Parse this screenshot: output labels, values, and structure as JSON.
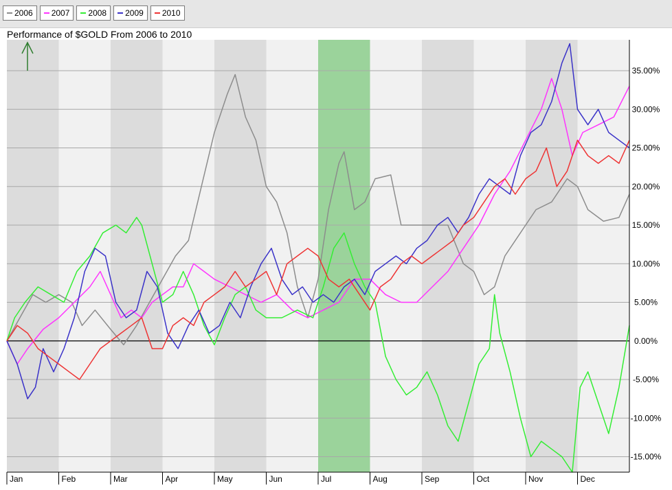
{
  "title": "Performance of $GOLD From 2006 to 2010",
  "legend": [
    {
      "label": "2006",
      "color": "#8c8c8c"
    },
    {
      "label": "2007",
      "color": "#ff33ff"
    },
    {
      "label": "2008",
      "color": "#33ee33"
    },
    {
      "label": "2009",
      "color": "#3a32c8"
    },
    {
      "label": "2010",
      "color": "#ee3333"
    }
  ],
  "chart_data": {
    "type": "line",
    "title": "Performance of $GOLD From 2006 to 2010",
    "x_unit": "month (0 = Jan 1, 12 = Dec 31)",
    "x_labels": [
      "Jan",
      "Feb",
      "Mar",
      "Apr",
      "May",
      "Jun",
      "Jul",
      "Aug",
      "Sep",
      "Oct",
      "Nov",
      "Dec"
    ],
    "ylim": [
      -17,
      39
    ],
    "y_ticks": [
      -15,
      -10,
      -5,
      0,
      5,
      10,
      15,
      20,
      25,
      30,
      35
    ],
    "y_tick_labels": [
      "-15.00%",
      "-10.00%",
      "-5.00%",
      "0.00%",
      "5.00%",
      "10.00%",
      "15.00%",
      "20.00%",
      "25.00%",
      "30.00%",
      "35.00%"
    ],
    "highlight_band": {
      "from": 6,
      "to": 7,
      "color": "#8fd18f"
    },
    "grid": true,
    "series": [
      {
        "name": "2006",
        "color": "#8c8c8c",
        "points": [
          [
            0,
            0
          ],
          [
            0.25,
            3
          ],
          [
            0.5,
            6
          ],
          [
            0.75,
            5
          ],
          [
            1,
            6
          ],
          [
            1.25,
            5
          ],
          [
            1.45,
            2
          ],
          [
            1.7,
            4
          ],
          [
            2,
            1.5
          ],
          [
            2.25,
            -0.5
          ],
          [
            2.5,
            2
          ],
          [
            2.75,
            5
          ],
          [
            3,
            8
          ],
          [
            3.25,
            11
          ],
          [
            3.5,
            13
          ],
          [
            3.75,
            20
          ],
          [
            4,
            27
          ],
          [
            4.25,
            32
          ],
          [
            4.4,
            34.5
          ],
          [
            4.6,
            29
          ],
          [
            4.8,
            26
          ],
          [
            5,
            20
          ],
          [
            5.2,
            18
          ],
          [
            5.4,
            14
          ],
          [
            5.6,
            7
          ],
          [
            5.8,
            3
          ],
          [
            6,
            8
          ],
          [
            6.2,
            17
          ],
          [
            6.4,
            23
          ],
          [
            6.5,
            24.5
          ],
          [
            6.7,
            17
          ],
          [
            6.9,
            18
          ],
          [
            7.1,
            21
          ],
          [
            7.4,
            21.5
          ],
          [
            7.6,
            15
          ],
          [
            7.9,
            15
          ],
          [
            8.2,
            15
          ],
          [
            8.5,
            15
          ],
          [
            8.8,
            10
          ],
          [
            9,
            9
          ],
          [
            9.2,
            6
          ],
          [
            9.4,
            7
          ],
          [
            9.6,
            11
          ],
          [
            9.9,
            14
          ],
          [
            10.2,
            17
          ],
          [
            10.5,
            18
          ],
          [
            10.8,
            21
          ],
          [
            11,
            20
          ],
          [
            11.2,
            17
          ],
          [
            11.5,
            15.5
          ],
          [
            11.8,
            16
          ],
          [
            12,
            19
          ]
        ]
      },
      {
        "name": "2007",
        "color": "#ff33ff",
        "points": [
          [
            0,
            0
          ],
          [
            0.2,
            -3
          ],
          [
            0.4,
            -1
          ],
          [
            0.7,
            1.5
          ],
          [
            1,
            3
          ],
          [
            1.3,
            5
          ],
          [
            1.6,
            7
          ],
          [
            1.8,
            9
          ],
          [
            2,
            6
          ],
          [
            2.2,
            3
          ],
          [
            2.4,
            4
          ],
          [
            2.6,
            3
          ],
          [
            2.8,
            5
          ],
          [
            3,
            6
          ],
          [
            3.2,
            7
          ],
          [
            3.4,
            7
          ],
          [
            3.6,
            10
          ],
          [
            3.8,
            9
          ],
          [
            4,
            8
          ],
          [
            4.3,
            7
          ],
          [
            4.6,
            6
          ],
          [
            4.9,
            5
          ],
          [
            5.2,
            6
          ],
          [
            5.5,
            4
          ],
          [
            5.8,
            3
          ],
          [
            6.1,
            4
          ],
          [
            6.4,
            5
          ],
          [
            6.7,
            8
          ],
          [
            7,
            8
          ],
          [
            7.3,
            6
          ],
          [
            7.6,
            5
          ],
          [
            7.9,
            5
          ],
          [
            8.2,
            7
          ],
          [
            8.5,
            9
          ],
          [
            8.8,
            12
          ],
          [
            9.1,
            15
          ],
          [
            9.4,
            19
          ],
          [
            9.7,
            22
          ],
          [
            10,
            26
          ],
          [
            10.3,
            30
          ],
          [
            10.5,
            34
          ],
          [
            10.7,
            30
          ],
          [
            10.9,
            24
          ],
          [
            11.1,
            27
          ],
          [
            11.4,
            28
          ],
          [
            11.7,
            29
          ],
          [
            12,
            33
          ]
        ]
      },
      {
        "name": "2008",
        "color": "#33ee33",
        "points": [
          [
            0,
            0
          ],
          [
            0.15,
            3
          ],
          [
            0.35,
            5
          ],
          [
            0.6,
            7
          ],
          [
            0.85,
            6
          ],
          [
            1.1,
            5
          ],
          [
            1.35,
            9
          ],
          [
            1.6,
            11
          ],
          [
            1.85,
            14
          ],
          [
            2.1,
            15
          ],
          [
            2.3,
            14
          ],
          [
            2.5,
            16
          ],
          [
            2.6,
            15
          ],
          [
            2.8,
            10
          ],
          [
            3,
            5
          ],
          [
            3.2,
            6
          ],
          [
            3.4,
            9
          ],
          [
            3.6,
            6
          ],
          [
            3.8,
            2
          ],
          [
            4,
            -0.5
          ],
          [
            4.2,
            3
          ],
          [
            4.4,
            6
          ],
          [
            4.6,
            7
          ],
          [
            4.8,
            4
          ],
          [
            5,
            3
          ],
          [
            5.3,
            3
          ],
          [
            5.6,
            4
          ],
          [
            5.9,
            3
          ],
          [
            6.1,
            7
          ],
          [
            6.3,
            12
          ],
          [
            6.5,
            14
          ],
          [
            6.7,
            10
          ],
          [
            6.9,
            7
          ],
          [
            7.1,
            5
          ],
          [
            7.3,
            -2
          ],
          [
            7.5,
            -5
          ],
          [
            7.7,
            -7
          ],
          [
            7.9,
            -6
          ],
          [
            8.1,
            -4
          ],
          [
            8.3,
            -7
          ],
          [
            8.5,
            -11
          ],
          [
            8.7,
            -13
          ],
          [
            8.9,
            -8
          ],
          [
            9.1,
            -3
          ],
          [
            9.3,
            -1
          ],
          [
            9.4,
            6
          ],
          [
            9.5,
            1
          ],
          [
            9.7,
            -4
          ],
          [
            9.9,
            -10
          ],
          [
            10.1,
            -15
          ],
          [
            10.3,
            -13
          ],
          [
            10.5,
            -14
          ],
          [
            10.7,
            -15
          ],
          [
            10.9,
            -17
          ],
          [
            11.05,
            -6
          ],
          [
            11.2,
            -4
          ],
          [
            11.4,
            -8
          ],
          [
            11.6,
            -12
          ],
          [
            11.8,
            -6
          ],
          [
            12,
            2
          ]
        ]
      },
      {
        "name": "2009",
        "color": "#3a32c8",
        "points": [
          [
            0,
            0
          ],
          [
            0.2,
            -3
          ],
          [
            0.4,
            -7.5
          ],
          [
            0.55,
            -6
          ],
          [
            0.7,
            -1
          ],
          [
            0.9,
            -4
          ],
          [
            1.1,
            -1
          ],
          [
            1.3,
            3
          ],
          [
            1.5,
            9
          ],
          [
            1.7,
            12
          ],
          [
            1.9,
            11
          ],
          [
            2.1,
            5
          ],
          [
            2.3,
            3
          ],
          [
            2.5,
            4
          ],
          [
            2.7,
            9
          ],
          [
            2.9,
            7
          ],
          [
            3.1,
            1
          ],
          [
            3.3,
            -1
          ],
          [
            3.5,
            2
          ],
          [
            3.7,
            4
          ],
          [
            3.9,
            1
          ],
          [
            4.1,
            2
          ],
          [
            4.3,
            5
          ],
          [
            4.5,
            3
          ],
          [
            4.7,
            7
          ],
          [
            4.9,
            10
          ],
          [
            5.1,
            12
          ],
          [
            5.3,
            8
          ],
          [
            5.5,
            6
          ],
          [
            5.7,
            7
          ],
          [
            5.9,
            5
          ],
          [
            6.1,
            6
          ],
          [
            6.3,
            5
          ],
          [
            6.5,
            7
          ],
          [
            6.7,
            8
          ],
          [
            6.9,
            6
          ],
          [
            7.1,
            9
          ],
          [
            7.3,
            10
          ],
          [
            7.5,
            11
          ],
          [
            7.7,
            10
          ],
          [
            7.9,
            12
          ],
          [
            8.1,
            13
          ],
          [
            8.3,
            15
          ],
          [
            8.5,
            16
          ],
          [
            8.7,
            14
          ],
          [
            8.9,
            16
          ],
          [
            9.1,
            19
          ],
          [
            9.3,
            21
          ],
          [
            9.5,
            20
          ],
          [
            9.7,
            19
          ],
          [
            9.9,
            24
          ],
          [
            10.1,
            27
          ],
          [
            10.3,
            28
          ],
          [
            10.5,
            31
          ],
          [
            10.7,
            36
          ],
          [
            10.85,
            38.5
          ],
          [
            11,
            30
          ],
          [
            11.2,
            28
          ],
          [
            11.4,
            30
          ],
          [
            11.6,
            27
          ],
          [
            11.8,
            26
          ],
          [
            12,
            25
          ]
        ]
      },
      {
        "name": "2010",
        "color": "#ee3333",
        "points": [
          [
            0,
            0
          ],
          [
            0.2,
            2
          ],
          [
            0.4,
            1
          ],
          [
            0.6,
            -1
          ],
          [
            0.8,
            -2
          ],
          [
            1,
            -3
          ],
          [
            1.2,
            -4
          ],
          [
            1.4,
            -5
          ],
          [
            1.6,
            -3
          ],
          [
            1.8,
            -1
          ],
          [
            2,
            0
          ],
          [
            2.2,
            1
          ],
          [
            2.4,
            2
          ],
          [
            2.6,
            3
          ],
          [
            2.8,
            -1
          ],
          [
            3,
            -1
          ],
          [
            3.2,
            2
          ],
          [
            3.4,
            3
          ],
          [
            3.6,
            2
          ],
          [
            3.8,
            5
          ],
          [
            4,
            6
          ],
          [
            4.2,
            7
          ],
          [
            4.4,
            9
          ],
          [
            4.6,
            7
          ],
          [
            4.8,
            8
          ],
          [
            5,
            9
          ],
          [
            5.2,
            6
          ],
          [
            5.4,
            10
          ],
          [
            5.6,
            11
          ],
          [
            5.8,
            12
          ],
          [
            6,
            11
          ],
          [
            6.2,
            8
          ],
          [
            6.4,
            7
          ],
          [
            6.6,
            8
          ],
          [
            6.8,
            6
          ],
          [
            7,
            4
          ],
          [
            7.2,
            7
          ],
          [
            7.4,
            8
          ],
          [
            7.6,
            10
          ],
          [
            7.8,
            11
          ],
          [
            8,
            10
          ],
          [
            8.2,
            11
          ],
          [
            8.4,
            12
          ],
          [
            8.6,
            13
          ],
          [
            8.8,
            15
          ],
          [
            9,
            16
          ],
          [
            9.2,
            18
          ],
          [
            9.4,
            20
          ],
          [
            9.6,
            21
          ],
          [
            9.8,
            19
          ],
          [
            10,
            21
          ],
          [
            10.2,
            22
          ],
          [
            10.4,
            25
          ],
          [
            10.6,
            20
          ],
          [
            10.8,
            22
          ],
          [
            11,
            26
          ],
          [
            11.2,
            24
          ],
          [
            11.4,
            23
          ],
          [
            11.6,
            24
          ],
          [
            11.8,
            23
          ],
          [
            12,
            26
          ]
        ]
      }
    ]
  }
}
